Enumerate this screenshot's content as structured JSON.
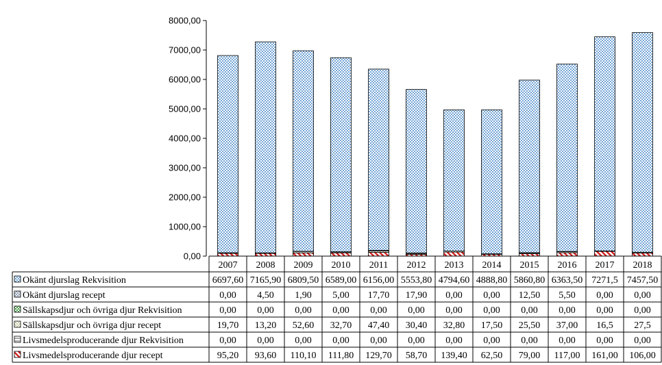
{
  "chart_data": {
    "type": "bar",
    "stacked": true,
    "categories": [
      "2007",
      "2008",
      "2009",
      "2010",
      "2011",
      "2012",
      "2013",
      "2014",
      "2015",
      "2016",
      "2017",
      "2018"
    ],
    "y_ticks": [
      "0,00",
      "1000,00",
      "2000,00",
      "3000,00",
      "4000,00",
      "5000,00",
      "6000,00",
      "7000,00",
      "8000,00"
    ],
    "ylim": [
      0,
      8000
    ],
    "grid": false,
    "legend": "data-table",
    "series": [
      {
        "name": "Okänt djurslag Rekvisition",
        "pattern": "dots-blue",
        "color": "#3a7fc4",
        "values": [
          6697.6,
          7165.9,
          6809.5,
          6589.0,
          6156.0,
          5553.8,
          4794.6,
          4888.8,
          5860.8,
          6363.5,
          7271.5,
          7457.5
        ],
        "labels": [
          "6697,60",
          "7165,90",
          "6809,50",
          "6589,00",
          "6156,00",
          "5553,80",
          "4794,60",
          "4888,80",
          "5860,80",
          "6363,50",
          "7271,5",
          "7457,50"
        ]
      },
      {
        "name": "Okänt djurslag recept",
        "pattern": "diamond-grey",
        "color": "#6f7f99",
        "values": [
          0.0,
          4.5,
          1.9,
          5.0,
          17.7,
          17.9,
          0.0,
          0.0,
          12.5,
          5.5,
          0.0,
          0.0
        ],
        "labels": [
          "0,00",
          "4,50",
          "1,90",
          "5,00",
          "17,70",
          "17,90",
          "0,00",
          "0,00",
          "12,50",
          "5,50",
          "0,00",
          "0,00"
        ]
      },
      {
        "name": "Sällskapsdjur och övriga djur Rekvisition",
        "pattern": "check-green",
        "color": "#3f9a3f",
        "values": [
          0,
          0,
          0,
          0,
          0,
          0,
          0,
          0,
          0,
          0,
          0,
          0
        ],
        "labels": [
          "0,00",
          "0,00",
          "0,00",
          "0,00",
          "0,00",
          "0,00",
          "0,00",
          "0,00",
          "0,00",
          "0,00",
          "0,00",
          "0,00"
        ]
      },
      {
        "name": "Sällskapsdjur och övriga djur recept",
        "pattern": "dots-olive",
        "color": "#8c8c3c",
        "values": [
          19.7,
          13.2,
          52.6,
          32.7,
          47.4,
          30.4,
          32.8,
          17.5,
          25.5,
          37.0,
          16.5,
          27.5
        ],
        "labels": [
          "19,70",
          "13,20",
          "52,60",
          "32,70",
          "47,40",
          "30,40",
          "32,80",
          "17,50",
          "25,50",
          "37,00",
          "16,5",
          "27,5"
        ]
      },
      {
        "name": "Livsmedelsproducerande djur Rekvisition",
        "pattern": "hbar-grey",
        "color": "#555555",
        "values": [
          0,
          0,
          0,
          0,
          0,
          0,
          0,
          0,
          0,
          0,
          0,
          0
        ],
        "labels": [
          "0,00",
          "0,00",
          "0,00",
          "0,00",
          "0,00",
          "0,00",
          "0,00",
          "0,00",
          "0,00",
          "0,00",
          "0,00",
          "0,00"
        ]
      },
      {
        "name": "Livsmedelsproducerande djur recept",
        "pattern": "diag-red",
        "color": "#d42020",
        "values": [
          95.2,
          93.6,
          110.1,
          111.8,
          129.7,
          58.7,
          139.4,
          62.5,
          79.0,
          117.0,
          161.0,
          106.0
        ],
        "labels": [
          "95,20",
          "93,60",
          "110,10",
          "111,80",
          "129,70",
          "58,70",
          "139,40",
          "62,50",
          "79,00",
          "117,00",
          "161,00",
          "106,00"
        ]
      }
    ]
  }
}
